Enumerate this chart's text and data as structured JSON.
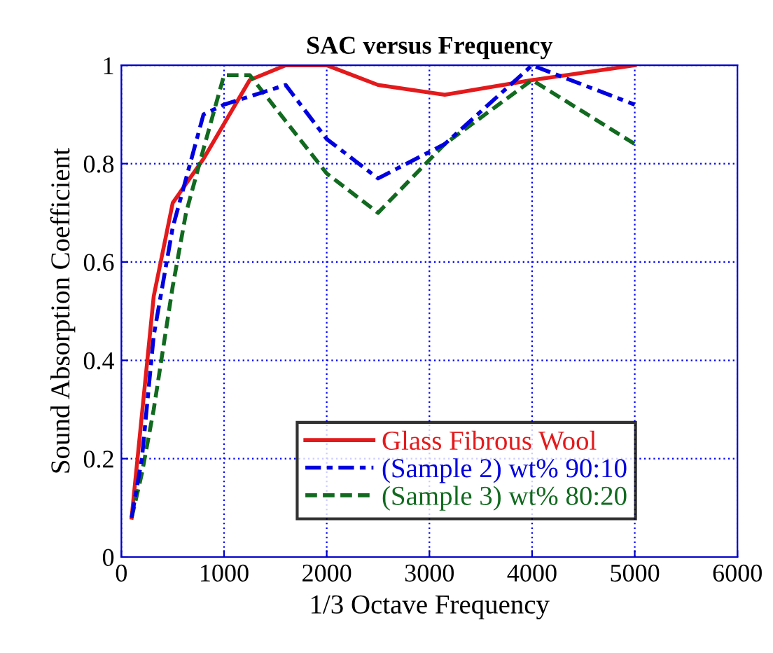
{
  "chart_data": {
    "type": "line",
    "title": "SAC versus Frequency",
    "xlabel": "1/3 Octave Frequency",
    "ylabel": "Sound Absorption Coefficient",
    "xlim": [
      0,
      6000
    ],
    "xticks": [
      0,
      1000,
      2000,
      3000,
      4000,
      5000,
      6000
    ],
    "ylim": [
      0,
      1
    ],
    "yticks": [
      0,
      0.2,
      0.4,
      0.6,
      0.8,
      1
    ],
    "grid": true,
    "legend": "bottom",
    "series": [
      {
        "name": "Glass Fibrous Wool",
        "color": "#e31a1c",
        "line_style": "solid",
        "x": [
          100,
          315,
          500,
          800,
          1250,
          1600,
          2000,
          2500,
          3150,
          4000,
          5000
        ],
        "values": [
          0.08,
          0.53,
          0.72,
          0.81,
          0.97,
          1.0,
          1.0,
          0.96,
          0.94,
          0.97,
          1.0
        ]
      },
      {
        "name": "(Sample 2) wt% 90:10",
        "color": "#0000e0",
        "line_style": "dashdot",
        "x": [
          100,
          200,
          315,
          500,
          800,
          1000,
          1600,
          2000,
          2500,
          3150,
          4000,
          5000
        ],
        "values": [
          0.08,
          0.2,
          0.45,
          0.67,
          0.9,
          0.92,
          0.96,
          0.85,
          0.77,
          0.84,
          1.0,
          0.92
        ]
      },
      {
        "name": "(Sample 3) wt% 80:20",
        "color": "#116a1f",
        "line_style": "dashed",
        "x": [
          100,
          200,
          315,
          500,
          630,
          800,
          1000,
          1250,
          2000,
          2500,
          3150,
          4000,
          5000
        ],
        "values": [
          0.08,
          0.17,
          0.3,
          0.55,
          0.7,
          0.83,
          0.98,
          0.98,
          0.78,
          0.7,
          0.84,
          0.97,
          0.84
        ]
      }
    ]
  }
}
